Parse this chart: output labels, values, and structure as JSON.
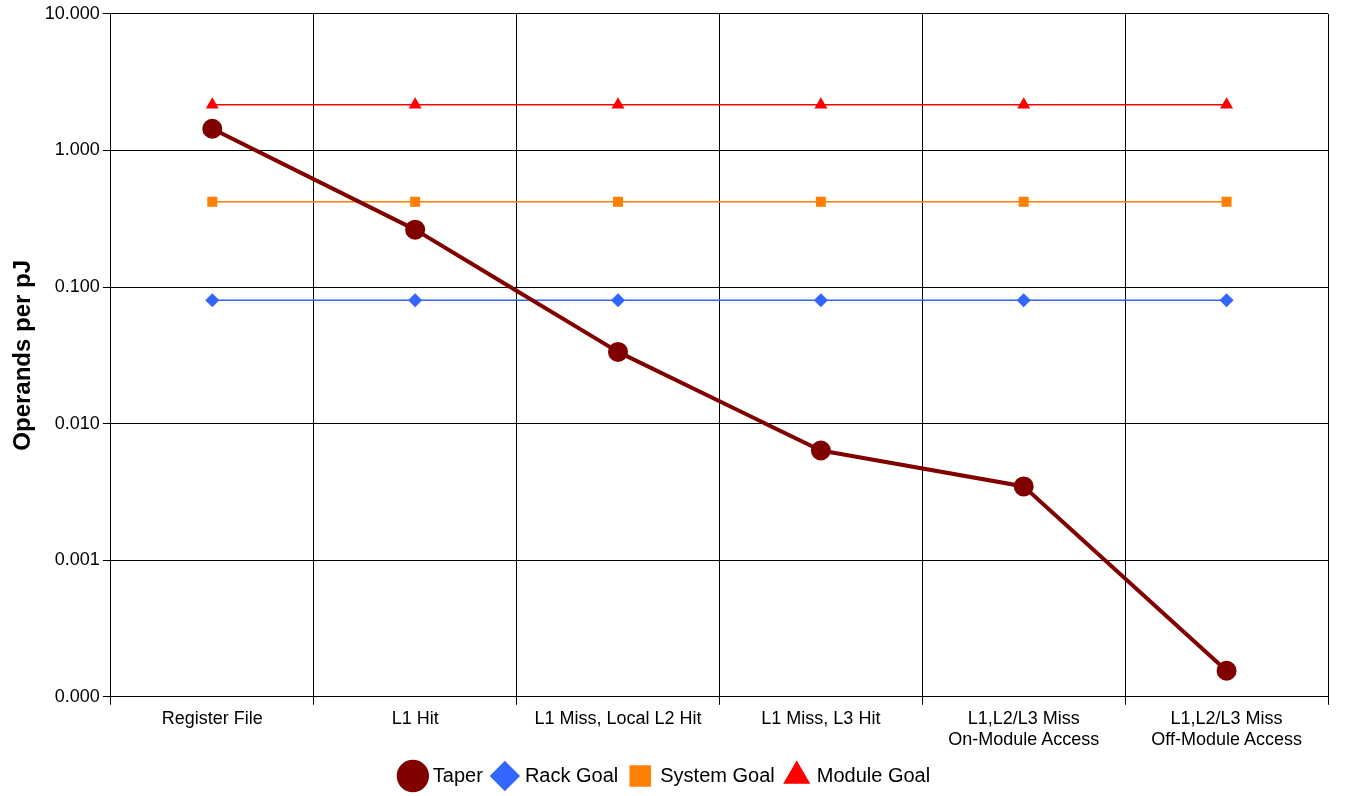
{
  "chart_data": {
    "type": "line",
    "ylabel": "Operands per pJ",
    "categories": [
      "Register File",
      "L1 Hit",
      "L1 Miss, Local L2 Hit",
      "L1 Miss, L3 Hit",
      "L1,L2/L3 Miss On-Module Access",
      "L1,L2/L3 Miss Off-Module Access"
    ],
    "series": [
      {
        "name": "Taper",
        "color": "#800000",
        "marker": "circle",
        "values": [
          1.44,
          0.263,
          0.0335,
          0.00635,
          0.00347,
          0.000155
        ]
      },
      {
        "name": "Rack Goal",
        "color": "#3366ff",
        "marker": "diamond",
        "values": [
          0.08,
          0.08,
          0.08,
          0.08,
          0.08,
          0.08
        ]
      },
      {
        "name": "System Goal",
        "color": "#ff7f00",
        "marker": "square",
        "values": [
          0.42,
          0.42,
          0.42,
          0.42,
          0.42,
          0.42
        ]
      },
      {
        "name": "Module Goal",
        "color": "#ff0000",
        "marker": "triangle",
        "values": [
          2.16,
          2.16,
          2.16,
          2.16,
          2.16,
          2.16
        ]
      }
    ],
    "log": "y",
    "ylim": [
      0.0001,
      10
    ],
    "yticks": [
      {
        "value": 0.0001,
        "label": "0.000"
      },
      {
        "value": 0.001,
        "label": "0.001"
      },
      {
        "value": 0.01,
        "label": "0.010"
      },
      {
        "value": 0.1,
        "label": "0.100"
      },
      {
        "value": 1,
        "label": "1.000"
      },
      {
        "value": 10,
        "label": "10.000"
      }
    ],
    "grid": true,
    "legend": "bottom"
  }
}
